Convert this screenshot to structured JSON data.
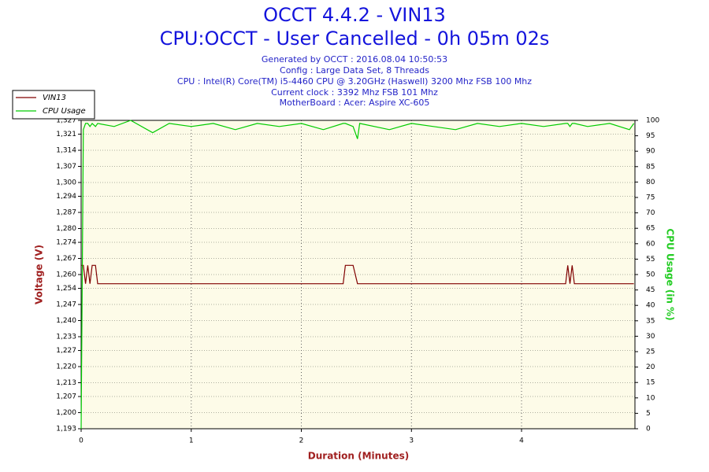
{
  "chart_data": {
    "type": "line",
    "title": "OCCT 4.4.2 - VIN13",
    "subtitle": "CPU:OCCT - User Cancelled - 0h 05m 02s",
    "info": [
      "Generated by OCCT : 2016.08.04 10:50:53",
      "Config : Large Data Set, 8 Threads",
      "CPU : Intel(R) Core(TM) i5-4460 CPU @ 3.20GHz (Haswell) 3200 Mhz FSB 100 Mhz",
      "Current clock : 3392 Mhz FSB 101 Mhz",
      "MotherBoard : Acer: Aspire XC-605"
    ],
    "xlabel": "Duration (Minutes)",
    "ylabel": "Voltage (V)",
    "y2label": "CPU Usage (in %)",
    "x": [
      0,
      0.02,
      0.04,
      0.06,
      0.08,
      0.1,
      0.13,
      0.15,
      0.3,
      0.45,
      0.65,
      0.8,
      1.0,
      1.2,
      1.4,
      1.6,
      1.8,
      2.0,
      2.2,
      2.38,
      2.4,
      2.47,
      2.51,
      2.53,
      2.8,
      3.0,
      3.2,
      3.4,
      3.6,
      3.8,
      4.0,
      4.2,
      4.4,
      4.42,
      4.44,
      4.46,
      4.48,
      4.6,
      4.8,
      4.98,
      5.02
    ],
    "series": [
      {
        "name": "VIN13",
        "color": "#800000",
        "values": [
          1.264,
          1.264,
          1.256,
          1.264,
          1.256,
          1.264,
          1.264,
          1.256,
          1.256,
          1.256,
          1.256,
          1.256,
          1.256,
          1.256,
          1.256,
          1.256,
          1.256,
          1.256,
          1.256,
          1.256,
          1.264,
          1.264,
          1.256,
          1.256,
          1.256,
          1.256,
          1.256,
          1.256,
          1.256,
          1.256,
          1.256,
          1.256,
          1.256,
          1.264,
          1.256,
          1.264,
          1.256,
          1.256,
          1.256,
          1.256,
          1.256
        ]
      },
      {
        "name": "CPU Usage",
        "color": "#00cc00",
        "axis": "y2",
        "values": [
          0,
          97,
          99,
          99,
          98,
          99,
          98,
          99,
          98,
          100,
          96,
          99,
          98,
          99,
          97,
          99,
          98,
          99,
          97,
          99,
          99,
          98,
          94,
          99,
          97,
          99,
          98,
          97,
          99,
          98,
          99,
          98,
          99,
          99,
          98,
          99,
          99,
          98,
          99,
          97,
          99
        ]
      }
    ],
    "xlim": [
      0,
      5.03
    ],
    "xticks": [
      0,
      1,
      2,
      3,
      4
    ],
    "ylim": [
      1.193,
      1.327
    ],
    "yticks": [
      {
        "value": 1.193,
        "label": "1,193"
      },
      {
        "value": 1.2,
        "label": "1,200"
      },
      {
        "value": 1.207,
        "label": "1,207"
      },
      {
        "value": 1.213,
        "label": "1,213"
      },
      {
        "value": 1.22,
        "label": "1,220"
      },
      {
        "value": 1.227,
        "label": "1,227"
      },
      {
        "value": 1.233,
        "label": "1,233"
      },
      {
        "value": 1.24,
        "label": "1,240"
      },
      {
        "value": 1.247,
        "label": "1,247"
      },
      {
        "value": 1.254,
        "label": "1,254"
      },
      {
        "value": 1.26,
        "label": "1,260"
      },
      {
        "value": 1.267,
        "label": "1,267"
      },
      {
        "value": 1.274,
        "label": "1,274"
      },
      {
        "value": 1.28,
        "label": "1,280"
      },
      {
        "value": 1.287,
        "label": "1,287"
      },
      {
        "value": 1.294,
        "label": "1,294"
      },
      {
        "value": 1.3,
        "label": "1,300"
      },
      {
        "value": 1.307,
        "label": "1,307"
      },
      {
        "value": 1.314,
        "label": "1,314"
      },
      {
        "value": 1.321,
        "label": "1,321"
      },
      {
        "value": 1.327,
        "label": "1,327"
      }
    ],
    "y2lim": [
      0,
      100
    ],
    "y2ticks": [
      0,
      5,
      10,
      15,
      20,
      25,
      30,
      35,
      40,
      45,
      50,
      55,
      60,
      65,
      70,
      75,
      80,
      85,
      90,
      95,
      100
    ],
    "grid": true,
    "legend": "upper-left"
  }
}
